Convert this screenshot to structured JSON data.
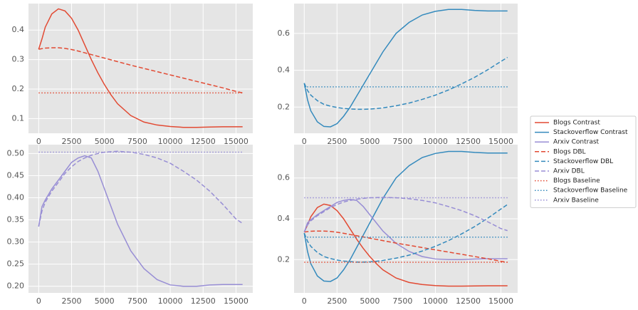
{
  "chart_data": [
    {
      "type": "line",
      "xlim": [
        -775,
        16275
      ],
      "ylim": [
        0.05,
        0.49
      ],
      "xticks": [
        0,
        2500,
        5000,
        7500,
        10000,
        12500,
        15000
      ],
      "yticks": [
        0.1,
        0.2,
        0.3,
        0.4
      ],
      "grid": true,
      "x": [
        0,
        250,
        500,
        1000,
        1500,
        2000,
        2500,
        3000,
        3500,
        4000,
        4500,
        5000,
        5500,
        6000,
        7000,
        8000,
        9000,
        10000,
        11000,
        12000,
        13000,
        14000,
        15000,
        15500
      ],
      "series": [
        {
          "color": "#E24A33",
          "linestyle": "solid",
          "values": [
            0.335,
            0.37,
            0.41,
            0.455,
            0.472,
            0.465,
            0.44,
            0.4,
            0.35,
            0.3,
            0.255,
            0.215,
            0.18,
            0.15,
            0.11,
            0.088,
            0.078,
            0.073,
            0.07,
            0.07,
            0.071,
            0.072,
            0.072,
            0.072
          ]
        },
        {
          "color": "#E24A33",
          "linestyle": "dashed",
          "values": [
            0.335,
            0.337,
            0.339,
            0.34,
            0.34,
            0.338,
            0.334,
            0.329,
            0.323,
            0.317,
            0.311,
            0.305,
            0.299,
            0.293,
            0.281,
            0.27,
            0.259,
            0.248,
            0.237,
            0.226,
            0.215,
            0.204,
            0.192,
            0.187
          ]
        },
        {
          "color": "#E24A33",
          "linestyle": "dotted",
          "values": [
            0.187,
            0.187,
            0.187,
            0.187,
            0.187,
            0.187,
            0.187,
            0.187,
            0.187,
            0.187,
            0.187,
            0.187,
            0.187,
            0.187,
            0.187,
            0.187,
            0.187,
            0.187,
            0.187,
            0.187,
            0.187,
            0.187,
            0.187,
            0.187
          ]
        }
      ]
    },
    {
      "type": "line",
      "xlim": [
        -775,
        16275
      ],
      "ylim": [
        0.058,
        0.762
      ],
      "xticks": [
        0,
        2500,
        5000,
        7500,
        10000,
        12500,
        15000
      ],
      "yticks": [
        0.2,
        0.4,
        0.6
      ],
      "grid": true,
      "x": [
        0,
        250,
        500,
        1000,
        1500,
        2000,
        2500,
        3000,
        3500,
        4000,
        4500,
        5000,
        5500,
        6000,
        7000,
        8000,
        9000,
        10000,
        11000,
        12000,
        13000,
        14000,
        15000,
        15500
      ],
      "series": [
        {
          "color": "#348ABD",
          "linestyle": "solid",
          "values": [
            0.33,
            0.24,
            0.18,
            0.12,
            0.095,
            0.093,
            0.11,
            0.15,
            0.2,
            0.26,
            0.32,
            0.38,
            0.44,
            0.5,
            0.6,
            0.66,
            0.7,
            0.72,
            0.73,
            0.73,
            0.725,
            0.722,
            0.722,
            0.722
          ]
        },
        {
          "color": "#348ABD",
          "linestyle": "dashed",
          "values": [
            0.33,
            0.29,
            0.265,
            0.235,
            0.215,
            0.205,
            0.198,
            0.193,
            0.19,
            0.188,
            0.188,
            0.189,
            0.192,
            0.196,
            0.207,
            0.222,
            0.242,
            0.265,
            0.293,
            0.326,
            0.362,
            0.403,
            0.448,
            0.47
          ]
        },
        {
          "color": "#348ABD",
          "linestyle": "dotted",
          "values": [
            0.31,
            0.31,
            0.31,
            0.31,
            0.31,
            0.31,
            0.31,
            0.31,
            0.31,
            0.31,
            0.31,
            0.31,
            0.31,
            0.31,
            0.31,
            0.31,
            0.31,
            0.31,
            0.31,
            0.31,
            0.31,
            0.31,
            0.31,
            0.31
          ]
        }
      ]
    },
    {
      "type": "line",
      "xlim": [
        -775,
        16275
      ],
      "ylim": [
        0.185,
        0.52
      ],
      "xticks": [
        0,
        2500,
        5000,
        7500,
        10000,
        12500,
        15000
      ],
      "yticks": [
        {
          "value": 0.2,
          "label": "0.20"
        },
        0.25,
        {
          "value": 0.3,
          "label": "0.30"
        },
        0.35,
        {
          "value": 0.4,
          "label": "0.40"
        },
        0.45,
        {
          "value": 0.5,
          "label": "0.50"
        }
      ],
      "grid": true,
      "x": [
        0,
        250,
        500,
        1000,
        1500,
        2000,
        2500,
        3000,
        3500,
        4000,
        4500,
        5000,
        5500,
        6000,
        7000,
        8000,
        9000,
        10000,
        11000,
        12000,
        13000,
        14000,
        15000,
        15500
      ],
      "series": [
        {
          "color": "#988ED5",
          "linestyle": "solid",
          "values": [
            0.335,
            0.38,
            0.395,
            0.42,
            0.44,
            0.46,
            0.48,
            0.49,
            0.495,
            0.49,
            0.46,
            0.42,
            0.38,
            0.34,
            0.28,
            0.24,
            0.215,
            0.203,
            0.2,
            0.2,
            0.203,
            0.204,
            0.204,
            0.204
          ]
        },
        {
          "color": "#988ED5",
          "linestyle": "dashed",
          "values": [
            0.335,
            0.37,
            0.39,
            0.415,
            0.435,
            0.455,
            0.47,
            0.482,
            0.49,
            0.496,
            0.5,
            0.503,
            0.504,
            0.505,
            0.503,
            0.498,
            0.49,
            0.478,
            0.46,
            0.44,
            0.415,
            0.385,
            0.352,
            0.342
          ]
        },
        {
          "color": "#988ED5",
          "linestyle": "dotted",
          "values": [
            0.503,
            0.503,
            0.503,
            0.503,
            0.503,
            0.503,
            0.503,
            0.503,
            0.503,
            0.503,
            0.503,
            0.503,
            0.503,
            0.503,
            0.503,
            0.503,
            0.503,
            0.503,
            0.503,
            0.503,
            0.503,
            0.503,
            0.503,
            0.503
          ]
        }
      ]
    },
    {
      "type": "line",
      "xlim": [
        -775,
        16275
      ],
      "ylim": [
        0.037,
        0.763
      ],
      "xticks": [
        0,
        2500,
        5000,
        7500,
        10000,
        12500,
        15000
      ],
      "yticks": [
        0.2,
        0.4,
        0.6
      ],
      "grid": true,
      "legend": "outside right",
      "x": [
        0,
        250,
        500,
        1000,
        1500,
        2000,
        2500,
        3000,
        3500,
        4000,
        4500,
        5000,
        5500,
        6000,
        7000,
        8000,
        9000,
        10000,
        11000,
        12000,
        13000,
        14000,
        15000,
        15500
      ],
      "series": [
        {
          "name": "Blogs Contrast",
          "color": "#E24A33",
          "linestyle": "solid",
          "values": [
            0.335,
            0.37,
            0.41,
            0.455,
            0.472,
            0.465,
            0.44,
            0.4,
            0.35,
            0.3,
            0.255,
            0.215,
            0.18,
            0.15,
            0.11,
            0.088,
            0.078,
            0.073,
            0.07,
            0.07,
            0.071,
            0.072,
            0.072,
            0.072
          ]
        },
        {
          "name": "Stackoverflow Contrast",
          "color": "#348ABD",
          "linestyle": "solid",
          "values": [
            0.33,
            0.24,
            0.18,
            0.12,
            0.095,
            0.093,
            0.11,
            0.15,
            0.2,
            0.26,
            0.32,
            0.38,
            0.44,
            0.5,
            0.6,
            0.66,
            0.7,
            0.72,
            0.73,
            0.73,
            0.725,
            0.722,
            0.722,
            0.722
          ]
        },
        {
          "name": "Arxiv Contrast",
          "color": "#988ED5",
          "linestyle": "solid",
          "values": [
            0.335,
            0.38,
            0.395,
            0.42,
            0.44,
            0.46,
            0.48,
            0.49,
            0.495,
            0.49,
            0.46,
            0.42,
            0.38,
            0.34,
            0.28,
            0.24,
            0.215,
            0.203,
            0.2,
            0.2,
            0.203,
            0.204,
            0.204,
            0.204
          ]
        },
        {
          "name": "Blogs DBL",
          "color": "#E24A33",
          "linestyle": "dashed",
          "values": [
            0.335,
            0.337,
            0.339,
            0.34,
            0.34,
            0.338,
            0.334,
            0.329,
            0.323,
            0.317,
            0.311,
            0.305,
            0.299,
            0.293,
            0.281,
            0.27,
            0.259,
            0.248,
            0.237,
            0.226,
            0.215,
            0.204,
            0.192,
            0.187
          ]
        },
        {
          "name": "Stackoverflow DBL",
          "color": "#348ABD",
          "linestyle": "dashed",
          "values": [
            0.33,
            0.29,
            0.265,
            0.235,
            0.215,
            0.205,
            0.198,
            0.193,
            0.19,
            0.188,
            0.188,
            0.189,
            0.192,
            0.196,
            0.207,
            0.222,
            0.242,
            0.265,
            0.293,
            0.326,
            0.362,
            0.403,
            0.448,
            0.47
          ]
        },
        {
          "name": "Arxiv DBL",
          "color": "#988ED5",
          "linestyle": "dashed",
          "values": [
            0.335,
            0.37,
            0.39,
            0.415,
            0.435,
            0.455,
            0.47,
            0.482,
            0.49,
            0.496,
            0.5,
            0.503,
            0.504,
            0.505,
            0.503,
            0.498,
            0.49,
            0.478,
            0.46,
            0.44,
            0.415,
            0.385,
            0.352,
            0.342
          ]
        },
        {
          "name": "Blogs Baseline",
          "color": "#E24A33",
          "linestyle": "dotted",
          "values": [
            0.187,
            0.187,
            0.187,
            0.187,
            0.187,
            0.187,
            0.187,
            0.187,
            0.187,
            0.187,
            0.187,
            0.187,
            0.187,
            0.187,
            0.187,
            0.187,
            0.187,
            0.187,
            0.187,
            0.187,
            0.187,
            0.187,
            0.187,
            0.187
          ]
        },
        {
          "name": "Stackoverflow Baseline",
          "color": "#348ABD",
          "linestyle": "dotted",
          "values": [
            0.31,
            0.31,
            0.31,
            0.31,
            0.31,
            0.31,
            0.31,
            0.31,
            0.31,
            0.31,
            0.31,
            0.31,
            0.31,
            0.31,
            0.31,
            0.31,
            0.31,
            0.31,
            0.31,
            0.31,
            0.31,
            0.31,
            0.31,
            0.31
          ]
        },
        {
          "name": "Arxiv Baseline",
          "color": "#988ED5",
          "linestyle": "dotted",
          "values": [
            0.503,
            0.503,
            0.503,
            0.503,
            0.503,
            0.503,
            0.503,
            0.503,
            0.503,
            0.503,
            0.503,
            0.503,
            0.503,
            0.503,
            0.503,
            0.503,
            0.503,
            0.503,
            0.503,
            0.503,
            0.503,
            0.503,
            0.503,
            0.503
          ]
        }
      ]
    }
  ]
}
